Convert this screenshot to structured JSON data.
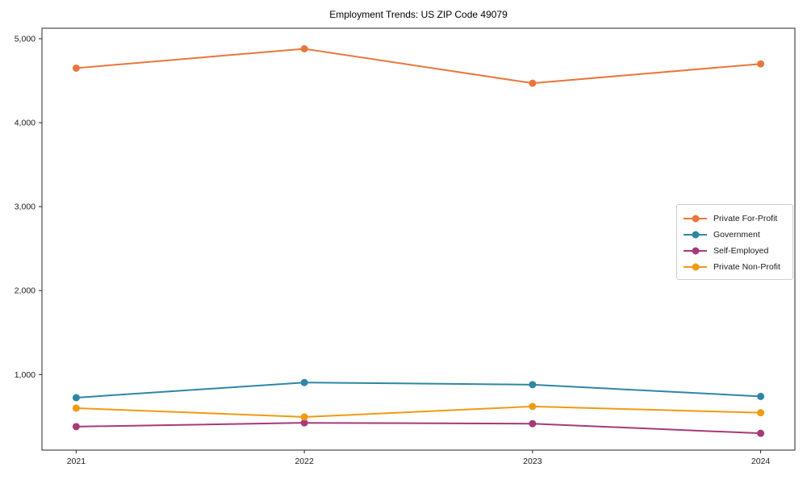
{
  "figure": {
    "background": "#ffffff",
    "axis_color": "#262626",
    "text_color": "#1a1a1a"
  },
  "chart_data": {
    "type": "line",
    "title": "Employment Trends: US ZIP Code 49079",
    "categories": [
      "2021",
      "2022",
      "2023",
      "2024"
    ],
    "series": [
      {
        "name": "Private For-Profit",
        "color": "#e8763c",
        "values": [
          4650,
          4880,
          4470,
          4700
        ]
      },
      {
        "name": "Government",
        "color": "#2e86a5",
        "values": [
          725,
          905,
          880,
          740
        ]
      },
      {
        "name": "Self-Employed",
        "color": "#a63a78",
        "values": [
          380,
          425,
          415,
          300
        ]
      },
      {
        "name": "Private Non-Profit",
        "color": "#f09a12",
        "values": [
          600,
          495,
          620,
          545
        ]
      }
    ],
    "yticks": [
      1000,
      2000,
      3000,
      4000,
      5000
    ],
    "ytick_labels": [
      "1,000",
      "2,000",
      "3,000",
      "4,000",
      "5,000"
    ],
    "ylim": [
      100,
      5125
    ],
    "xlim": [
      -0.15,
      3.15
    ],
    "xlabel": "",
    "ylabel": "",
    "grid": false,
    "legend_position": "center-right",
    "marker": "circle",
    "line_width": 2
  }
}
